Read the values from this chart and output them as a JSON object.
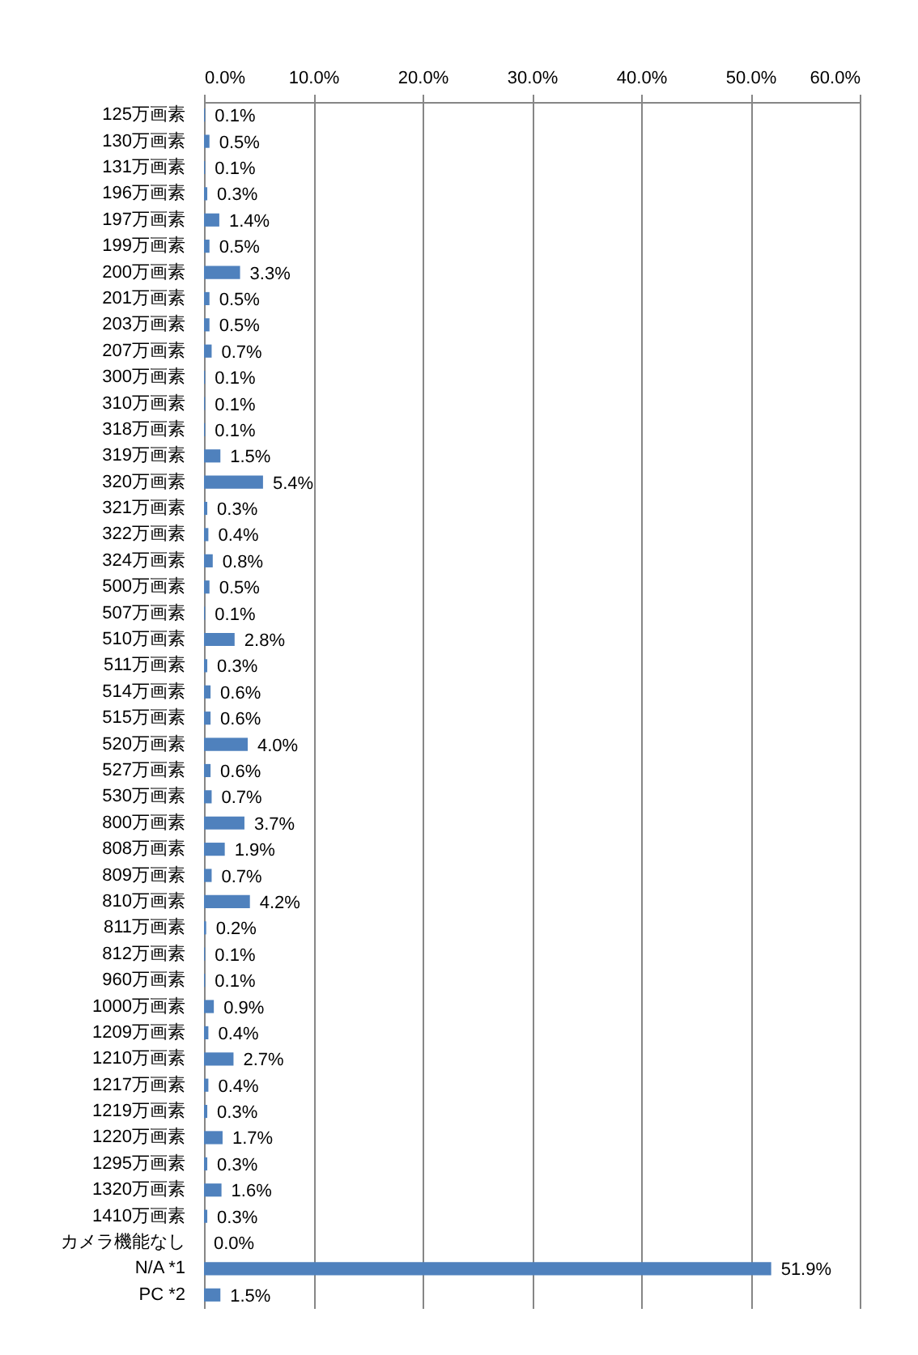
{
  "chart_data": {
    "type": "bar",
    "orientation": "horizontal",
    "categories": [
      "125万画素",
      "130万画素",
      "131万画素",
      "196万画素",
      "197万画素",
      "199万画素",
      "200万画素",
      "201万画素",
      "203万画素",
      "207万画素",
      "300万画素",
      "310万画素",
      "318万画素",
      "319万画素",
      "320万画素",
      "321万画素",
      "322万画素",
      "324万画素",
      "500万画素",
      "507万画素",
      "510万画素",
      "511万画素",
      "514万画素",
      "515万画素",
      "520万画素",
      "527万画素",
      "530万画素",
      "800万画素",
      "808万画素",
      "809万画素",
      "810万画素",
      "811万画素",
      "812万画素",
      "960万画素",
      "1000万画素",
      "1209万画素",
      "1210万画素",
      "1217万画素",
      "1219万画素",
      "1220万画素",
      "1295万画素",
      "1320万画素",
      "1410万画素",
      "カメラ機能なし",
      "N/A *1",
      "PC *2"
    ],
    "values": [
      0.1,
      0.5,
      0.1,
      0.3,
      1.4,
      0.5,
      3.3,
      0.5,
      0.5,
      0.7,
      0.1,
      0.1,
      0.1,
      1.5,
      5.4,
      0.3,
      0.4,
      0.8,
      0.5,
      0.1,
      2.8,
      0.3,
      0.6,
      0.6,
      4.0,
      0.6,
      0.7,
      3.7,
      1.9,
      0.7,
      4.2,
      0.2,
      0.1,
      0.1,
      0.9,
      0.4,
      2.7,
      0.4,
      0.3,
      1.7,
      0.3,
      1.6,
      0.3,
      0.0,
      51.9,
      1.5
    ],
    "value_labels": [
      "0.1%",
      "0.5%",
      "0.1%",
      "0.3%",
      "1.4%",
      "0.5%",
      "3.3%",
      "0.5%",
      "0.5%",
      "0.7%",
      "0.1%",
      "0.1%",
      "0.1%",
      "1.5%",
      "5.4%",
      "0.3%",
      "0.4%",
      "0.8%",
      "0.5%",
      "0.1%",
      "2.8%",
      "0.3%",
      "0.6%",
      "0.6%",
      "4.0%",
      "0.6%",
      "0.7%",
      "3.7%",
      "1.9%",
      "0.7%",
      "4.2%",
      "0.2%",
      "0.1%",
      "0.1%",
      "0.9%",
      "0.4%",
      "2.7%",
      "0.4%",
      "0.3%",
      "1.7%",
      "0.3%",
      "1.6%",
      "0.3%",
      "0.0%",
      "51.9%",
      "1.5%"
    ],
    "color": "#4f81bd",
    "xlim": [
      0,
      60
    ],
    "xticks": [
      {
        "value": 0,
        "label": "0.0%"
      },
      {
        "value": 10,
        "label": "10.0%"
      },
      {
        "value": 20,
        "label": "20.0%"
      },
      {
        "value": 30,
        "label": "30.0%"
      },
      {
        "value": 40,
        "label": "40.0%"
      },
      {
        "value": 50,
        "label": "50.0%"
      },
      {
        "value": 60,
        "label": "60.0%"
      }
    ],
    "grid": "x"
  }
}
